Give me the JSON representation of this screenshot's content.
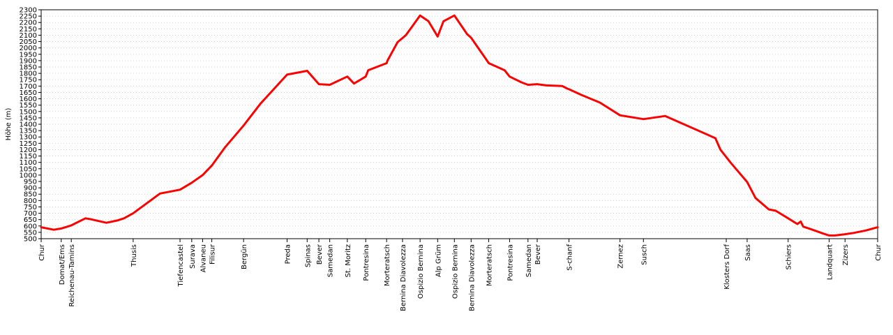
{
  "chart_data": {
    "type": "line",
    "ylabel": "Höhe (m)",
    "xlabel": "",
    "ylim": [
      500,
      2300
    ],
    "y_ticks": [
      500,
      550,
      600,
      650,
      700,
      750,
      800,
      850,
      900,
      950,
      1000,
      1050,
      1100,
      1150,
      1200,
      1250,
      1300,
      1350,
      1400,
      1450,
      1500,
      1550,
      1600,
      1650,
      1700,
      1750,
      1800,
      1850,
      1900,
      1950,
      2000,
      2050,
      2100,
      2150,
      2200,
      2250,
      2300
    ],
    "grid": true,
    "line_color": "#ff0000",
    "x_range": [
      0,
      100
    ],
    "stations": [
      {
        "name": "Chur",
        "x": 0.0
      },
      {
        "name": "Domat/Ems",
        "x": 2.4
      },
      {
        "name": "Reichenau-Tamins",
        "x": 3.6
      },
      {
        "name": "Thusis",
        "x": 11.0
      },
      {
        "name": "Tiefencastel",
        "x": 16.6
      },
      {
        "name": "Surava",
        "x": 18.0
      },
      {
        "name": "Alvaneu",
        "x": 19.3
      },
      {
        "name": "Filisur",
        "x": 20.4
      },
      {
        "name": "Bergün",
        "x": 24.2
      },
      {
        "name": "Preda",
        "x": 29.4
      },
      {
        "name": "Spinas",
        "x": 31.8
      },
      {
        "name": "Bever",
        "x": 33.2
      },
      {
        "name": "Samedan",
        "x": 34.5
      },
      {
        "name": "St. Moritz",
        "x": 36.6
      },
      {
        "name": "Pontresina",
        "x": 38.8
      },
      {
        "name": "Morteratsch",
        "x": 41.3
      },
      {
        "name": "Bernina Diavolezza",
        "x": 43.2
      },
      {
        "name": "Ospizio Bernina",
        "x": 45.3
      },
      {
        "name": "Alp Grüm",
        "x": 47.4
      },
      {
        "name": "Ospizio Bernina",
        "x": 49.4
      },
      {
        "name": "Bernina Diavolezza",
        "x": 51.4
      },
      {
        "name": "Morteratsch",
        "x": 53.5
      },
      {
        "name": "Pontresina",
        "x": 56.0
      },
      {
        "name": "Samedan",
        "x": 58.2
      },
      {
        "name": "Bever",
        "x": 59.3
      },
      {
        "name": "S-chanf",
        "x": 63.1
      },
      {
        "name": "Zernez",
        "x": 69.2
      },
      {
        "name": "Susch",
        "x": 72.0
      },
      {
        "name": "Klosters Dorf",
        "x": 81.9
      },
      {
        "name": "Saas",
        "x": 84.4
      },
      {
        "name": "Schiers",
        "x": 89.3
      },
      {
        "name": "Landquart",
        "x": 94.2
      },
      {
        "name": "Zizers",
        "x": 96.1
      },
      {
        "name": "Chur",
        "x": 100.0
      }
    ],
    "series": [
      {
        "x": [
          0.0,
          1.5,
          2.4,
          3.6,
          5.3,
          5.8,
          7.8,
          9.2,
          9.9,
          11.0,
          14.2,
          16.6,
          18.0,
          19.3,
          20.4,
          22.0,
          24.2,
          26.2,
          29.4,
          31.8,
          33.2,
          34.5,
          36.6,
          37.4,
          38.8,
          39.1,
          41.3,
          41.4,
          42.6,
          43.6,
          45.3,
          46.3,
          47.4,
          48.1,
          49.4,
          50.9,
          51.4,
          53.3,
          53.5,
          55.4,
          56.0,
          57.4,
          58.2,
          59.3,
          60.4,
          62.3,
          62.9,
          63.1,
          64.6,
          66.8,
          69.2,
          72.0,
          74.6,
          80.6,
          81.2,
          82.4,
          84.4,
          85.4,
          87.0,
          87.8,
          89.3,
          90.4,
          90.8,
          91.1,
          92.0,
          93.5,
          94.2,
          94.9,
          96.1,
          97.1,
          98.6,
          100.0
        ],
        "values": [
          590,
          570,
          580,
          605,
          660,
          655,
          625,
          645,
          660,
          700,
          855,
          885,
          940,
          1000,
          1075,
          1220,
          1390,
          1560,
          1790,
          1820,
          1715,
          1710,
          1775,
          1720,
          1775,
          1825,
          1880,
          1900,
          2045,
          2100,
          2255,
          2210,
          2090,
          2210,
          2255,
          2110,
          2080,
          1900,
          1880,
          1825,
          1775,
          1730,
          1710,
          1715,
          1705,
          1700,
          1680,
          1675,
          1630,
          1570,
          1470,
          1440,
          1465,
          1290,
          1200,
          1100,
          945,
          820,
          730,
          720,
          660,
          615,
          635,
          595,
          575,
          540,
          525,
          525,
          535,
          545,
          565,
          590
        ]
      }
    ]
  }
}
